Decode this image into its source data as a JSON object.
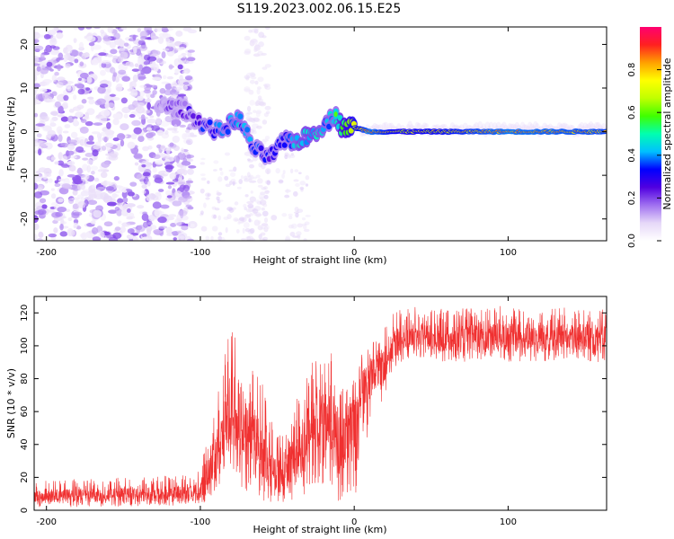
{
  "figure": {
    "title": "S119.2023.002.06.15.E25"
  },
  "chart_data": [
    {
      "type": "heatmap",
      "xlabel": "Height of straight line (km)",
      "ylabel": "Frequency (Hz)",
      "xlim": [
        -208,
        164
      ],
      "ylim": [
        -25,
        24
      ],
      "x_ticks": [
        -200,
        -100,
        0,
        100
      ],
      "y_ticks": [
        -20,
        -10,
        0,
        10,
        20
      ],
      "colorbar": {
        "label": "Normalized spectral amplitude",
        "range": [
          0,
          1
        ],
        "ticks": [
          0.0,
          0.2,
          0.4,
          0.6,
          0.8
        ],
        "tick_labels": [
          "0.0",
          "0.2",
          "0.4",
          "0.6",
          "0.8"
        ],
        "colormap": [
          "#ffffff",
          "#e6d8f8",
          "#a070f0",
          "#5000e0",
          "#0000ff",
          "#00c0ff",
          "#00ffb0",
          "#40ff00",
          "#c0ff00",
          "#ffff00",
          "#ffa000",
          "#ff2020",
          "#ff0070"
        ]
      },
      "features": {
        "noise_region_x": [
          -208,
          -105
        ],
        "carrier_ridge": {
          "x": [
            -128,
            -110,
            -100,
            -88,
            -75,
            -65,
            -55,
            -45,
            -35,
            -25,
            -18,
            -12,
            -8,
            0,
            10,
            30,
            60,
            100,
            164
          ],
          "y": [
            6,
            5,
            2,
            0,
            3,
            -4,
            -6,
            -2,
            -2,
            0,
            2,
            4,
            1,
            1,
            0,
            0,
            0,
            0,
            0
          ],
          "amplitude": [
            0.15,
            0.2,
            0.3,
            0.35,
            0.4,
            0.35,
            0.3,
            0.35,
            0.45,
            0.45,
            0.4,
            0.4,
            0.55,
            0.7,
            0.85,
            0.7,
            0.75,
            0.85,
            0.8
          ]
        }
      }
    },
    {
      "type": "line",
      "xlabel": "Height of straight line (km)",
      "ylabel": "SNR (10 * v/v)",
      "xlim": [
        -208,
        164
      ],
      "ylim": [
        0,
        130
      ],
      "x_ticks": [
        -200,
        -100,
        0,
        100
      ],
      "y_ticks": [
        0,
        20,
        40,
        60,
        80,
        100,
        120
      ],
      "series": [
        {
          "color": "#f03030",
          "envelope": {
            "x": [
              -208,
              -150,
              -110,
              -100,
              -95,
              -88,
              -82,
              -78,
              -72,
              -68,
              -62,
              -58,
              -52,
              -45,
              -40,
              -35,
              -30,
              -25,
              -20,
              -15,
              -10,
              -5,
              -2,
              0,
              2,
              5,
              10,
              15,
              20,
              25,
              30,
              40,
              60,
              100,
              164
            ],
            "mid": [
              9,
              9,
              10,
              12,
              20,
              45,
              55,
              60,
              50,
              45,
              40,
              35,
              20,
              20,
              30,
              35,
              45,
              50,
              50,
              55,
              40,
              45,
              50,
              55,
              50,
              70,
              80,
              85,
              90,
              100,
              103,
              105,
              104,
              105,
              105
            ],
            "low": [
              2,
              2,
              3,
              4,
              5,
              15,
              25,
              20,
              10,
              10,
              5,
              5,
              5,
              5,
              5,
              5,
              10,
              15,
              15,
              15,
              5,
              10,
              5,
              5,
              15,
              30,
              50,
              60,
              70,
              85,
              90,
              92,
              90,
              90,
              90
            ],
            "high": [
              18,
              20,
              22,
              30,
              45,
              75,
              105,
              115,
              95,
              90,
              80,
              75,
              50,
              45,
              60,
              75,
              85,
              95,
              90,
              100,
              75,
              80,
              90,
              120,
              90,
              95,
              100,
              105,
              115,
              120,
              122,
              125,
              122,
              125,
              122
            ]
          }
        }
      ]
    }
  ]
}
